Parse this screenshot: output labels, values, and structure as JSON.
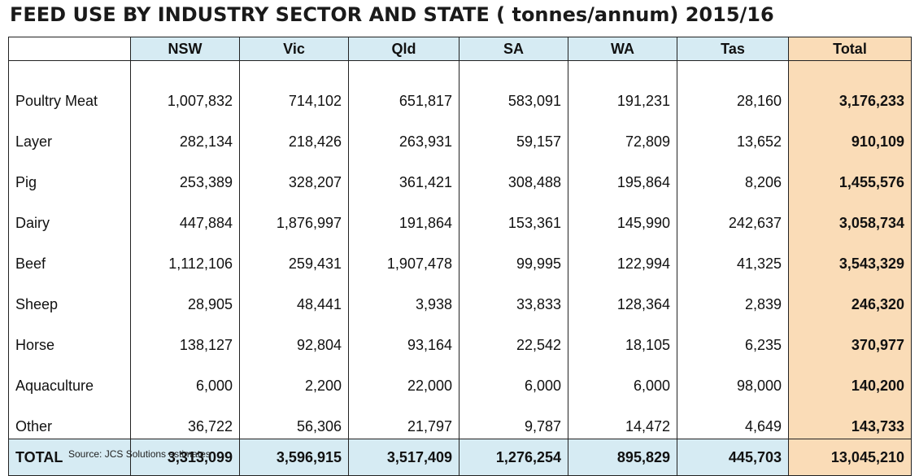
{
  "title": "FEED USE BY INDUSTRY SECTOR AND STATE ( tonnes/annum) 2015/16",
  "source": "Source: JCS Solutions estimates",
  "colors": {
    "header_blue": "#d6ebf3",
    "total_orange": "#fadcb7"
  },
  "chart_data": {
    "type": "table",
    "title": "FEED USE BY INDUSTRY SECTOR AND STATE ( tonnes/annum) 2015/16",
    "columns": [
      "",
      "NSW",
      "Vic",
      "Qld",
      "SA",
      "WA",
      "Tas",
      "Total"
    ],
    "rows": [
      [
        "Poultry Meat",
        "1,007,832",
        "714,102",
        "651,817",
        "583,091",
        "191,231",
        "28,160",
        "3,176,233"
      ],
      [
        "Layer",
        "282,134",
        "218,426",
        "263,931",
        "59,157",
        "72,809",
        "13,652",
        "910,109"
      ],
      [
        "Pig",
        "253,389",
        "328,207",
        "361,421",
        "308,488",
        "195,864",
        "8,206",
        "1,455,576"
      ],
      [
        "Dairy",
        "447,884",
        "1,876,997",
        "191,864",
        "153,361",
        "145,990",
        "242,637",
        "3,058,734"
      ],
      [
        "Beef",
        "1,112,106",
        "259,431",
        "1,907,478",
        "99,995",
        "122,994",
        "41,325",
        "3,543,329"
      ],
      [
        "Sheep",
        "28,905",
        "48,441",
        "3,938",
        "33,833",
        "128,364",
        "2,839",
        "246,320"
      ],
      [
        "Horse",
        "138,127",
        "92,804",
        "93,164",
        "22,542",
        "18,105",
        "6,235",
        "370,977"
      ],
      [
        "Aquaculture",
        "6,000",
        "2,200",
        "22,000",
        "6,000",
        "6,000",
        "98,000",
        "140,200"
      ],
      [
        "Other",
        "36,722",
        "56,306",
        "21,797",
        "9,787",
        "14,472",
        "4,649",
        "143,733"
      ]
    ],
    "total_row": [
      "TOTAL",
      "3,313,099",
      "3,596,915",
      "3,517,409",
      "1,276,254",
      "895,829",
      "445,703",
      "13,045,210"
    ]
  }
}
